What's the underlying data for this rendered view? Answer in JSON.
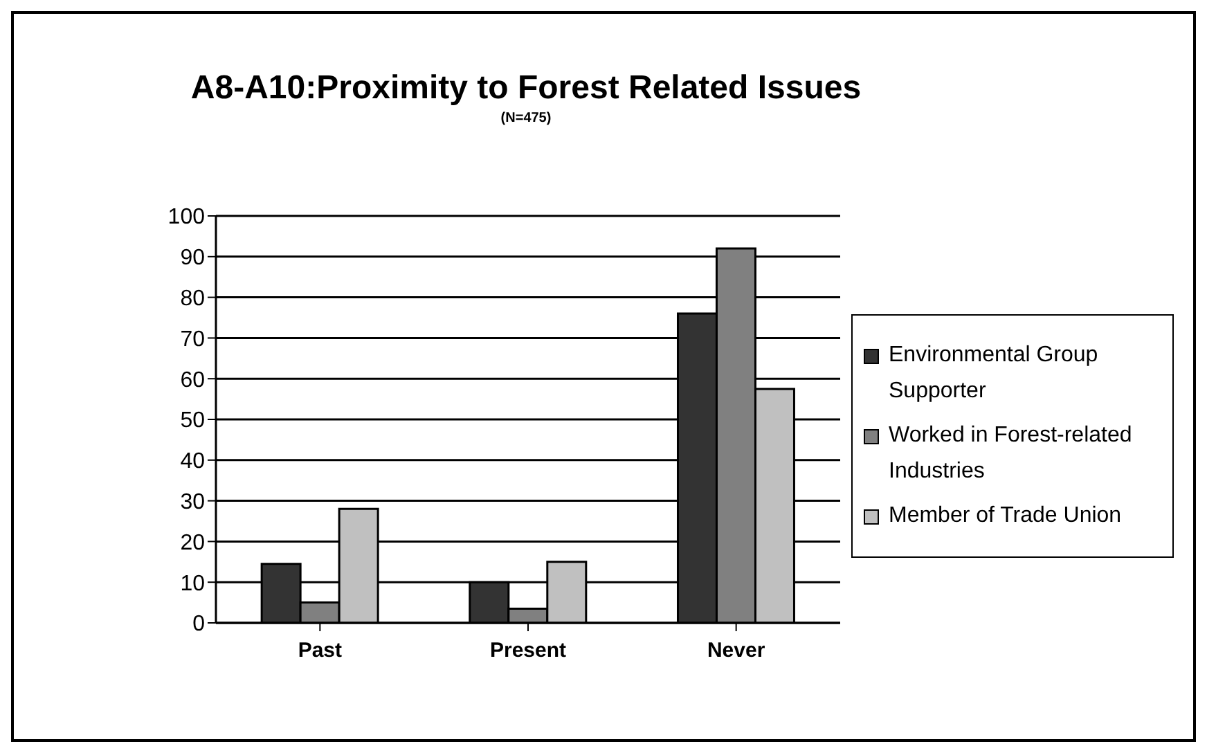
{
  "chart_data": {
    "type": "bar",
    "title": "A8-A10:Proximity to Forest Related Issues",
    "subtitle": "(N=475)",
    "categories": [
      "Past",
      "Present",
      "Never"
    ],
    "series": [
      {
        "name": "Environmental Group Supporter",
        "color": "#333333",
        "values": [
          14.5,
          10,
          76
        ]
      },
      {
        "name": "Worked in Forest-related Industries",
        "color": "#808080",
        "values": [
          5,
          3.5,
          92
        ]
      },
      {
        "name": "Member of Trade Union",
        "color": "#c0c0c0",
        "values": [
          28,
          15,
          57.5
        ]
      }
    ],
    "ylim": [
      0,
      100
    ],
    "yticks": [
      0,
      10,
      20,
      30,
      40,
      50,
      60,
      70,
      80,
      90,
      100
    ],
    "grid": "y",
    "legend": "right"
  }
}
